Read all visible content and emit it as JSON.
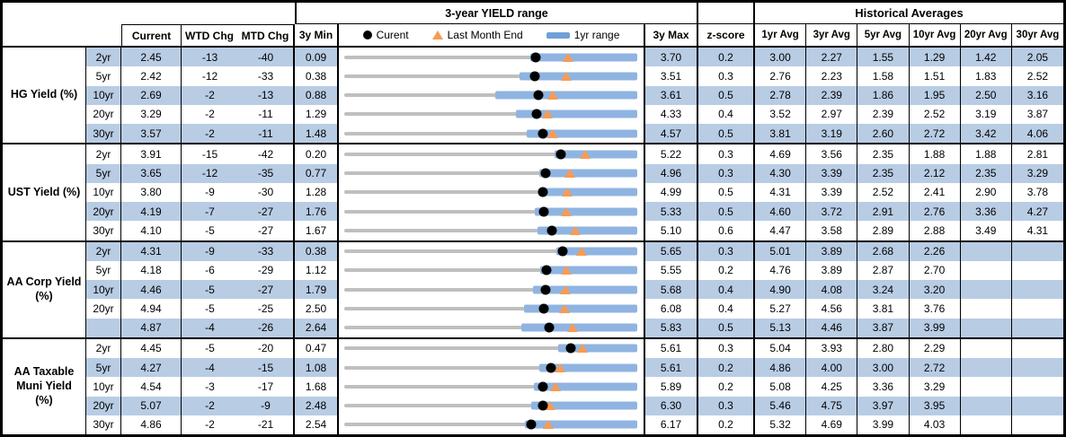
{
  "header": {
    "group_chart_title": "3-year YIELD range",
    "group_hist_title": "Historical Averages",
    "col_current": "Current",
    "col_wtd": "WTD Chg",
    "col_mtd": "MTD Chg",
    "col_min": "3y Min",
    "col_max": "3y Max",
    "col_z": "z-score",
    "avg_cols": [
      "1yr Avg",
      "3yr Avg",
      "5yr Avg",
      "10yr Avg",
      "20yr Avg",
      "30yr Avg"
    ],
    "legend": {
      "current": "Curent",
      "last_month_end": "Last Month End",
      "range_1yr": "1yr range"
    }
  },
  "colors": {
    "row_band_blue": "#B8CCE4",
    "range_bar_blue": "#8FB4E1",
    "legend_bar_blue": "#6FA0D6",
    "track_gray": "#BFBFBF",
    "marker_orange": "#F79B54",
    "border_black": "#000000"
  },
  "chart_data": {
    "type": "table",
    "description": "Yield table with per-row bullet range charts; each chart spans 3y Min to 3y Max, blue bar is 1yr range, black dot is Current, orange triangle is Last Month End",
    "sections": [
      {
        "label_lines": [
          "HG Yield (%)"
        ],
        "rows": [
          {
            "tenor": "2yr",
            "current": "2.45",
            "wtd": "-13",
            "mtd": "-40",
            "min": "0.09",
            "max": "3.70",
            "z": "0.2",
            "avgs": [
              "3.00",
              "2.27",
              "1.55",
              "1.29",
              "1.42",
              "2.05"
            ],
            "bar_1yr_low": 2.38,
            "last_month_end": 2.85
          },
          {
            "tenor": "5yr",
            "current": "2.42",
            "wtd": "-12",
            "mtd": "-33",
            "min": "0.38",
            "max": "3.51",
            "z": "0.3",
            "avgs": [
              "2.76",
              "2.23",
              "1.58",
              "1.51",
              "1.83",
              "2.52"
            ],
            "bar_1yr_low": 2.25,
            "last_month_end": 2.75
          },
          {
            "tenor": "10yr",
            "current": "2.69",
            "wtd": "-2",
            "mtd": "-13",
            "min": "0.88",
            "max": "3.61",
            "z": "0.5",
            "avgs": [
              "2.78",
              "2.39",
              "1.86",
              "1.95",
              "2.50",
              "3.16"
            ],
            "bar_1yr_low": 2.29,
            "last_month_end": 2.82
          },
          {
            "tenor": "20yr",
            "current": "3.29",
            "wtd": "-2",
            "mtd": "-11",
            "min": "1.29",
            "max": "4.33",
            "z": "0.4",
            "avgs": [
              "3.52",
              "2.97",
              "2.39",
              "2.52",
              "3.19",
              "3.87"
            ],
            "bar_1yr_low": 3.07,
            "last_month_end": 3.4
          },
          {
            "tenor": "30yr",
            "current": "3.57",
            "wtd": "-2",
            "mtd": "-11",
            "min": "1.48",
            "max": "4.57",
            "z": "0.5",
            "avgs": [
              "3.81",
              "3.19",
              "2.60",
              "2.72",
              "3.42",
              "4.06"
            ],
            "bar_1yr_low": 3.4,
            "last_month_end": 3.68
          }
        ]
      },
      {
        "label_lines": [
          "UST Yield (%)"
        ],
        "rows": [
          {
            "tenor": "2yr",
            "current": "3.91",
            "wtd": "-15",
            "mtd": "-42",
            "min": "0.20",
            "max": "5.22",
            "z": "0.3",
            "avgs": [
              "4.69",
              "3.56",
              "2.35",
              "1.88",
              "1.88",
              "2.81"
            ],
            "bar_1yr_low": 3.8,
            "last_month_end": 4.33
          },
          {
            "tenor": "5yr",
            "current": "3.65",
            "wtd": "-12",
            "mtd": "-35",
            "min": "0.77",
            "max": "4.96",
            "z": "0.3",
            "avgs": [
              "4.30",
              "3.39",
              "2.35",
              "2.12",
              "2.35",
              "3.29"
            ],
            "bar_1yr_low": 3.56,
            "last_month_end": 4.0
          },
          {
            "tenor": "10yr",
            "current": "3.80",
            "wtd": "-9",
            "mtd": "-30",
            "min": "1.28",
            "max": "4.99",
            "z": "0.5",
            "avgs": [
              "4.31",
              "3.39",
              "2.52",
              "2.41",
              "2.90",
              "3.78"
            ],
            "bar_1yr_low": 3.74,
            "last_month_end": 4.1
          },
          {
            "tenor": "20yr",
            "current": "4.19",
            "wtd": "-7",
            "mtd": "-27",
            "min": "1.76",
            "max": "5.33",
            "z": "0.5",
            "avgs": [
              "4.60",
              "3.72",
              "2.91",
              "2.76",
              "3.36",
              "4.27"
            ],
            "bar_1yr_low": 4.08,
            "last_month_end": 4.46
          },
          {
            "tenor": "30yr",
            "current": "4.10",
            "wtd": "-5",
            "mtd": "-27",
            "min": "1.67",
            "max": "5.10",
            "z": "0.6",
            "avgs": [
              "4.47",
              "3.58",
              "2.89",
              "2.88",
              "3.49",
              "4.31"
            ],
            "bar_1yr_low": 3.93,
            "last_month_end": 4.37
          }
        ]
      },
      {
        "label_lines": [
          "AA Corp Yield",
          "(%)"
        ],
        "rows": [
          {
            "tenor": "2yr",
            "current": "4.31",
            "wtd": "-9",
            "mtd": "-33",
            "min": "0.38",
            "max": "5.65",
            "z": "0.3",
            "avgs": [
              "5.01",
              "3.89",
              "2.68",
              "2.26",
              "",
              ""
            ],
            "bar_1yr_low": 4.19,
            "last_month_end": 4.64
          },
          {
            "tenor": "5yr",
            "current": "4.18",
            "wtd": "-6",
            "mtd": "-29",
            "min": "1.12",
            "max": "5.55",
            "z": "0.2",
            "avgs": [
              "4.76",
              "3.89",
              "2.87",
              "2.70",
              "",
              ""
            ],
            "bar_1yr_low": 4.08,
            "last_month_end": 4.47
          },
          {
            "tenor": "10yr",
            "current": "4.46",
            "wtd": "-5",
            "mtd": "-27",
            "min": "1.79",
            "max": "5.68",
            "z": "0.4",
            "avgs": [
              "4.90",
              "4.08",
              "3.24",
              "3.20",
              "",
              ""
            ],
            "bar_1yr_low": 4.3,
            "last_month_end": 4.73
          },
          {
            "tenor": "20yr",
            "current": "4.94",
            "wtd": "-5",
            "mtd": "-25",
            "min": "2.50",
            "max": "6.08",
            "z": "0.4",
            "avgs": [
              "5.27",
              "4.56",
              "3.81",
              "3.76",
              "",
              ""
            ],
            "bar_1yr_low": 4.7,
            "last_month_end": 5.19
          },
          {
            "tenor": "",
            "current": "4.87",
            "wtd": "-4",
            "mtd": "-26",
            "min": "2.64",
            "max": "5.83",
            "z": "0.5",
            "avgs": [
              "5.13",
              "4.46",
              "3.87",
              "3.99",
              "",
              ""
            ],
            "bar_1yr_low": 4.57,
            "last_month_end": 5.13
          }
        ]
      },
      {
        "label_lines": [
          "AA Taxable",
          "Muni Yield",
          "(%)"
        ],
        "rows": [
          {
            "tenor": "2yr",
            "current": "4.45",
            "wtd": "-5",
            "mtd": "-20",
            "min": "0.47",
            "max": "5.61",
            "z": "0.3",
            "avgs": [
              "5.04",
              "3.93",
              "2.80",
              "2.29",
              "",
              ""
            ],
            "bar_1yr_low": 4.22,
            "last_month_end": 4.65
          },
          {
            "tenor": "5yr",
            "current": "4.27",
            "wtd": "-4",
            "mtd": "-15",
            "min": "1.08",
            "max": "5.61",
            "z": "0.2",
            "avgs": [
              "4.86",
              "4.00",
              "3.00",
              "2.72",
              "",
              ""
            ],
            "bar_1yr_low": 4.09,
            "last_month_end": 4.42
          },
          {
            "tenor": "10yr",
            "current": "4.54",
            "wtd": "-3",
            "mtd": "-17",
            "min": "1.68",
            "max": "5.89",
            "z": "0.2",
            "avgs": [
              "5.08",
              "4.25",
              "3.36",
              "3.29",
              "",
              ""
            ],
            "bar_1yr_low": 4.4,
            "last_month_end": 4.71
          },
          {
            "tenor": "20yr",
            "current": "5.07",
            "wtd": "-2",
            "mtd": "-9",
            "min": "2.48",
            "max": "6.30",
            "z": "0.3",
            "avgs": [
              "5.46",
              "4.75",
              "3.97",
              "3.95",
              "",
              ""
            ],
            "bar_1yr_low": 4.92,
            "last_month_end": 5.16
          },
          {
            "tenor": "30yr",
            "current": "4.86",
            "wtd": "-2",
            "mtd": "-21",
            "min": "2.54",
            "max": "6.17",
            "z": "0.2",
            "avgs": [
              "5.32",
              "4.69",
              "3.99",
              "4.03",
              "",
              ""
            ],
            "bar_1yr_low": 4.78,
            "last_month_end": 5.07
          }
        ]
      }
    ]
  }
}
